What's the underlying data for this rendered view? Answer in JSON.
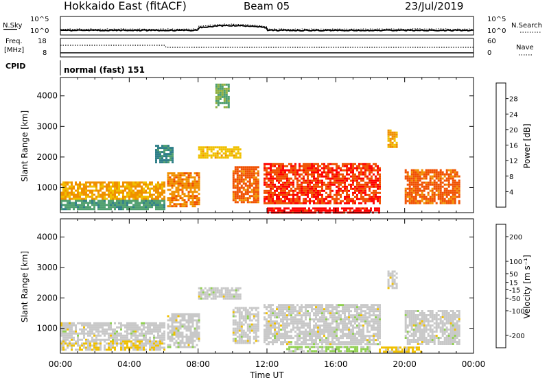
{
  "header": {
    "station": "Hokkaido East (fitACF)",
    "beam": "Beam 05",
    "date": "23/Jul/2019"
  },
  "noise_panel": {
    "left_label": "N.Sky",
    "right_label": "N.Search",
    "left_ticks": [
      "10^5",
      "10^0"
    ],
    "right_ticks": [
      "10^5",
      "10^0"
    ]
  },
  "freq_panel": {
    "left_label_line1": "Freq.",
    "left_label_line2": "[MHz]",
    "left_ticks": [
      "18",
      "8"
    ],
    "right_label": "Nave",
    "right_ticks": [
      "60",
      "0"
    ]
  },
  "cpid_panel": {
    "label": "CPID",
    "mode": "normal (fast) 151"
  },
  "chart_data": [
    {
      "type": "heatmap",
      "name": "power",
      "ylabel": "Slant Range [km]",
      "y_ticks": [
        "4000",
        "3000",
        "2000",
        "1000"
      ],
      "ylim": [
        180,
        4600
      ],
      "colorbar_label": "Power [dB]",
      "colorbar_ticks": [
        "28",
        "24",
        "20",
        "16",
        "12",
        "8",
        "4"
      ],
      "colorbar_range": [
        0,
        32
      ],
      "colors": [
        "#1010ff",
        "#2f4fc8",
        "#2f7f88",
        "#4f9f6f",
        "#90b040",
        "#f0c000",
        "#f09000",
        "#f05000",
        "#ff0000"
      ],
      "regions": [
        {
          "x": [
            0.0,
            6.0
          ],
          "y": [
            650,
            1200
          ],
          "level": 22
        },
        {
          "x": [
            0.0,
            6.0
          ],
          "y": [
            300,
            600
          ],
          "level": 12
        },
        {
          "x": [
            6.2,
            8.0
          ],
          "y": [
            400,
            1500
          ],
          "level": 24
        },
        {
          "x": [
            8.0,
            10.5
          ],
          "y": [
            1950,
            2350
          ],
          "level": 20
        },
        {
          "x": [
            5.5,
            6.5
          ],
          "y": [
            1800,
            2400
          ],
          "level": 10
        },
        {
          "x": [
            9.0,
            9.8
          ],
          "y": [
            3600,
            4400
          ],
          "level": 14
        },
        {
          "x": [
            10.0,
            11.5
          ],
          "y": [
            500,
            1700
          ],
          "level": 26
        },
        {
          "x": [
            11.8,
            18.5
          ],
          "y": [
            500,
            1800
          ],
          "level": 28
        },
        {
          "x": [
            12.0,
            18.5
          ],
          "y": [
            200,
            350
          ],
          "level": 30
        },
        {
          "x": [
            19.0,
            19.5
          ],
          "y": [
            2300,
            2900
          ],
          "level": 22
        },
        {
          "x": [
            20.0,
            23.2
          ],
          "y": [
            500,
            1600
          ],
          "level": 26
        }
      ]
    },
    {
      "type": "heatmap",
      "name": "velocity",
      "ylabel": "Slant Range [km]",
      "xlabel": "Time UT",
      "x_ticks": [
        "00:00",
        "04:00",
        "08:00",
        "12:00",
        "16:00",
        "20:00",
        "00:00"
      ],
      "xlim": [
        0,
        24
      ],
      "y_ticks": [
        "4000",
        "3000",
        "2000",
        "1000"
      ],
      "ylim": [
        180,
        4600
      ],
      "colorbar_label": "Velocity [m s⁻¹]",
      "colorbar_ticks": [
        "200",
        "100",
        "50",
        "15",
        "-15",
        "-50",
        "-100",
        "-200"
      ],
      "colorbar_range": [
        -250,
        250
      ],
      "colors": [
        "#ff0000",
        "#f05000",
        "#f09000",
        "#f0c000",
        "#c8c8c8",
        "#90d050",
        "#40a050",
        "#2f7f88",
        "#1010ff"
      ],
      "regions": [
        {
          "x": [
            0.0,
            6.0
          ],
          "y": [
            650,
            1200
          ],
          "level": 0
        },
        {
          "x": [
            0.0,
            6.0
          ],
          "y": [
            300,
            600
          ],
          "level": -20
        },
        {
          "x": [
            6.2,
            8.0
          ],
          "y": [
            400,
            1500
          ],
          "level": 0
        },
        {
          "x": [
            8.0,
            10.5
          ],
          "y": [
            1950,
            2350
          ],
          "level": 0
        },
        {
          "x": [
            10.0,
            11.5
          ],
          "y": [
            500,
            1700
          ],
          "level": 0
        },
        {
          "x": [
            11.8,
            18.5
          ],
          "y": [
            500,
            1800
          ],
          "level": 0
        },
        {
          "x": [
            13.0,
            18.0
          ],
          "y": [
            250,
            420
          ],
          "level": 40
        },
        {
          "x": [
            19.0,
            19.5
          ],
          "y": [
            2300,
            2900
          ],
          "level": 0
        },
        {
          "x": [
            18.5,
            21.0
          ],
          "y": [
            200,
            400
          ],
          "level": -40
        },
        {
          "x": [
            20.0,
            23.2
          ],
          "y": [
            500,
            1600
          ],
          "level": 0
        }
      ]
    }
  ]
}
